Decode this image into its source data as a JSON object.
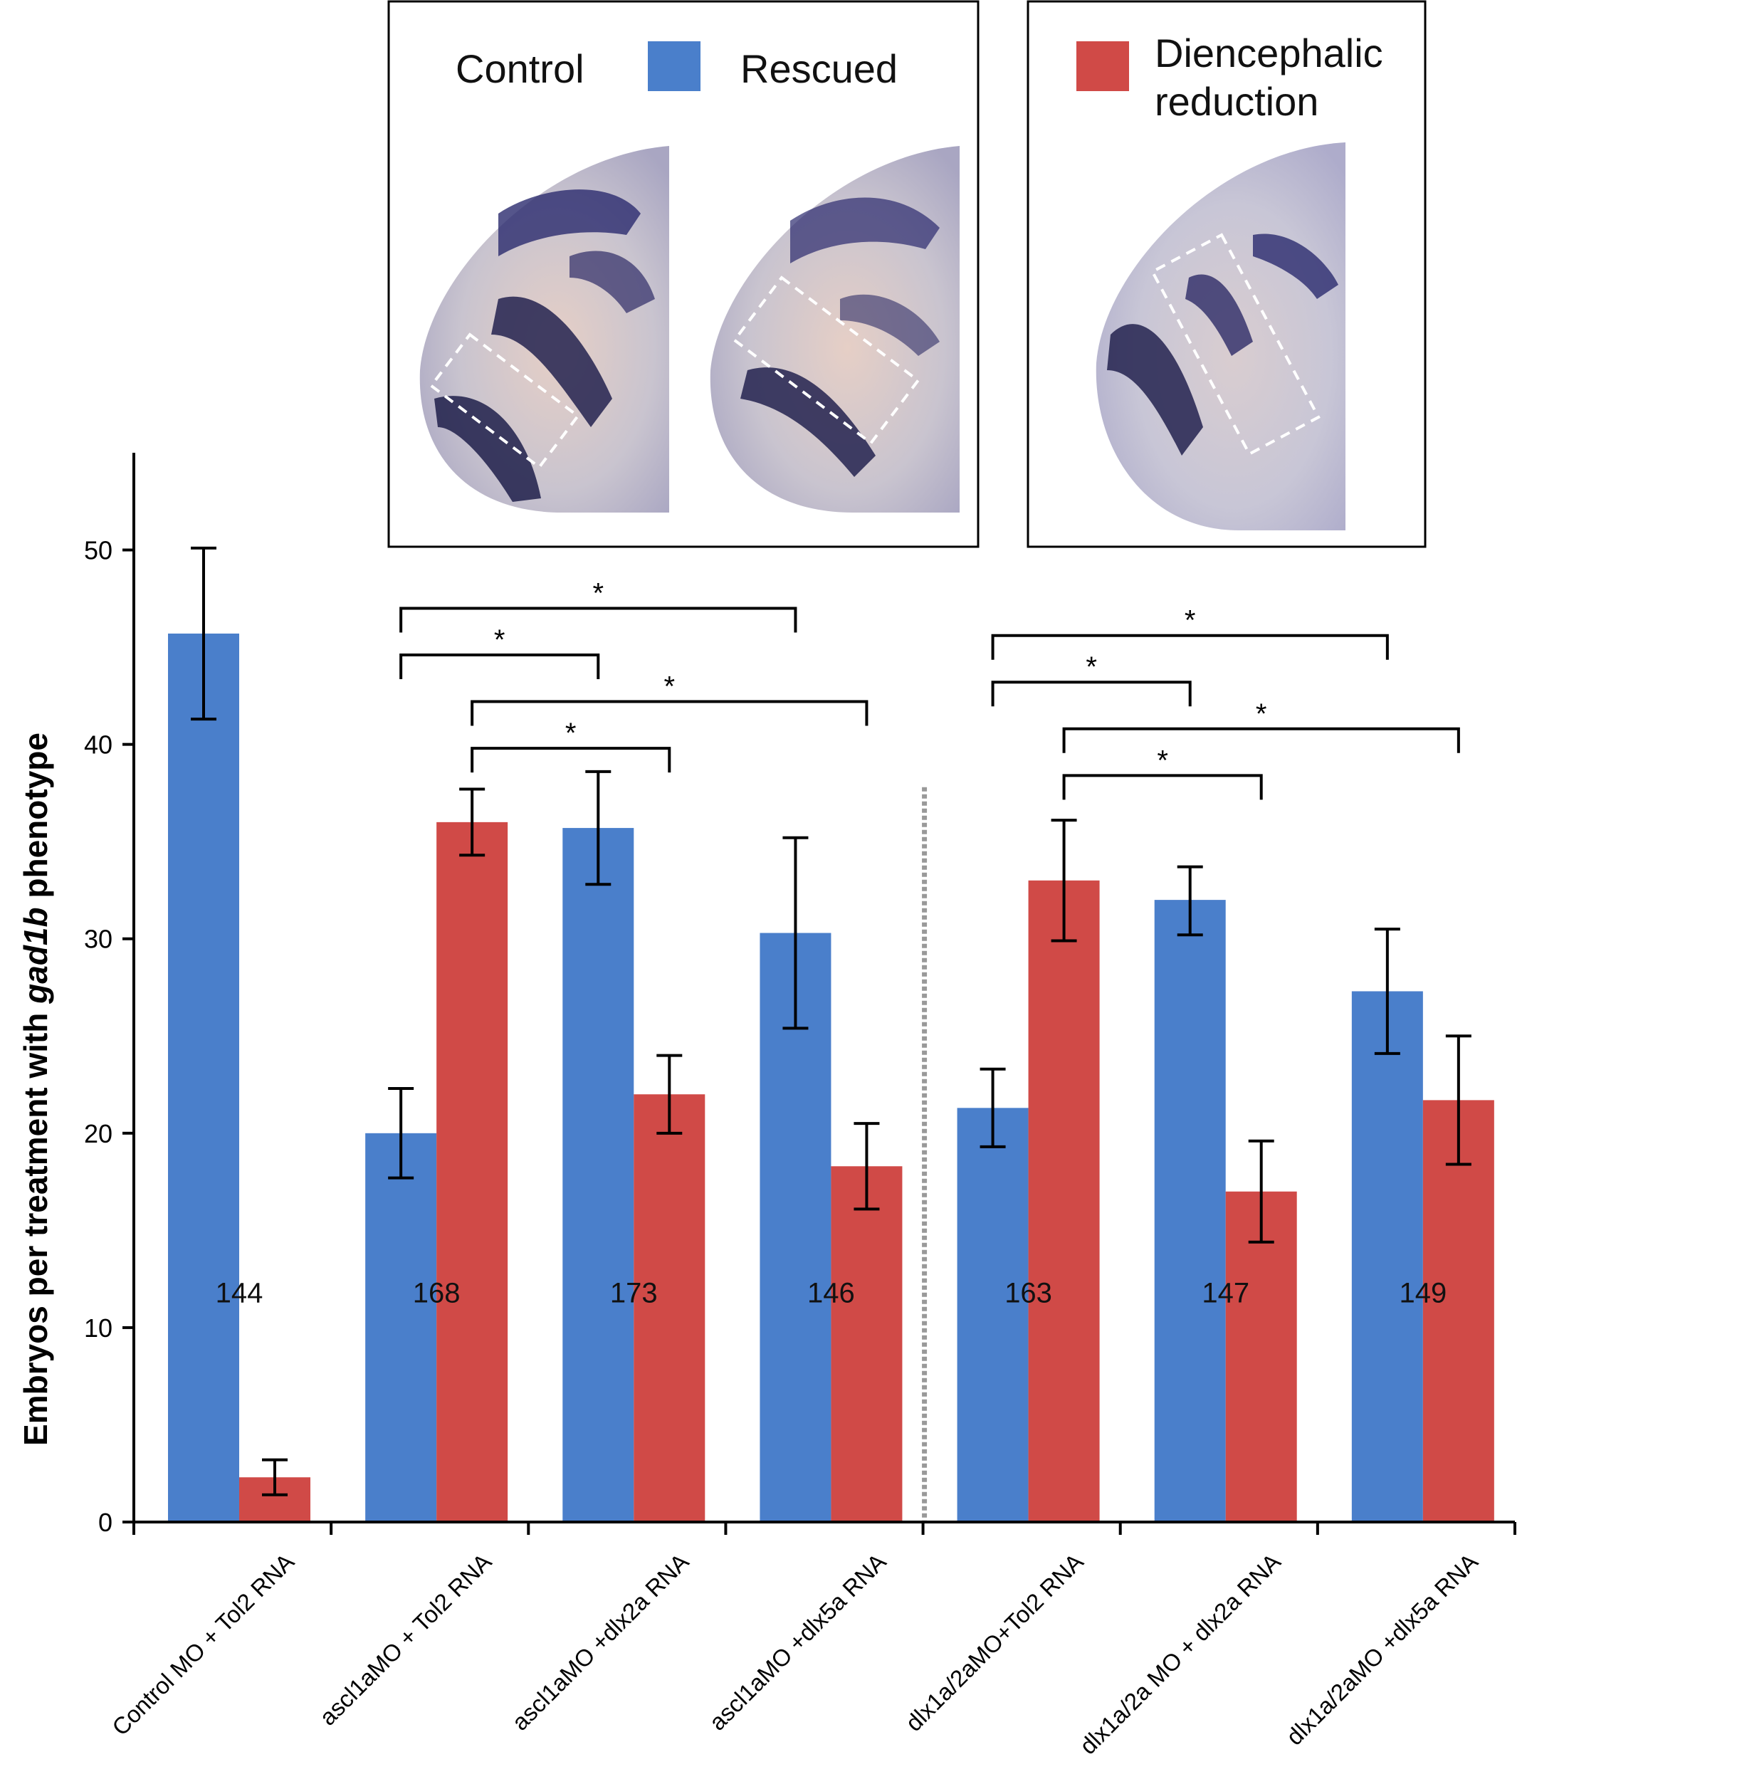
{
  "chart_data": {
    "type": "bar",
    "ylabel_prefix": "Embryos per treatment with ",
    "ylabel_gene": "gad1b",
    "ylabel_suffix": " phenotype",
    "ylim": [
      0,
      55
    ],
    "yticks": [
      0,
      10,
      20,
      30,
      40,
      50
    ],
    "categories": [
      "Control MO + Tol2 RNA",
      "ascl1aMO + Tol2 RNA",
      "ascl1aMO +dlx2a RNA",
      "ascl1aMO +dlx5a RNA",
      "dlx1a/2aMO+Tol2 RNA",
      "dlx1a/2a MO + dlx2a RNA",
      "dlx1a/2aMO +dlx5a RNA"
    ],
    "n_counts": [
      "144",
      "168",
      "173",
      "146",
      "163",
      "147",
      "149"
    ],
    "series": [
      {
        "name": "Rescued",
        "color": "#4a7fcb",
        "values": [
          45.7,
          20.0,
          35.7,
          30.3,
          21.3,
          32.0,
          27.3
        ],
        "err_low": [
          41.3,
          17.7,
          32.8,
          25.4,
          19.3,
          30.2,
          24.1
        ],
        "err_high": [
          50.1,
          22.3,
          38.6,
          35.2,
          23.3,
          33.7,
          30.5
        ]
      },
      {
        "name": "Diencephalic reduction",
        "color": "#d04a47",
        "values": [
          2.3,
          36.0,
          22.0,
          18.3,
          33.0,
          17.0,
          21.7
        ],
        "err_low": [
          1.4,
          34.3,
          20.0,
          16.1,
          29.9,
          14.4,
          18.4
        ],
        "err_high": [
          3.2,
          37.7,
          24.0,
          20.5,
          36.1,
          19.6,
          25.0
        ]
      }
    ],
    "divider_between": [
      3,
      4
    ],
    "significance": [
      {
        "from_group": 1,
        "from_series": 0,
        "to_group": 3,
        "to_series": 0,
        "level": 47.0,
        "label": "*"
      },
      {
        "from_group": 1,
        "from_series": 0,
        "to_group": 2,
        "to_series": 0,
        "level": 44.6,
        "label": "*"
      },
      {
        "from_group": 1,
        "from_series": 1,
        "to_group": 3,
        "to_series": 1,
        "level": 42.2,
        "label": "*"
      },
      {
        "from_group": 1,
        "from_series": 1,
        "to_group": 2,
        "to_series": 1,
        "level": 39.8,
        "label": "*"
      },
      {
        "from_group": 4,
        "from_series": 0,
        "to_group": 6,
        "to_series": 0,
        "level": 45.6,
        "label": "*"
      },
      {
        "from_group": 4,
        "from_series": 0,
        "to_group": 5,
        "to_series": 0,
        "level": 43.2,
        "label": "*"
      },
      {
        "from_group": 4,
        "from_series": 1,
        "to_group": 6,
        "to_series": 1,
        "level": 40.8,
        "label": "*"
      },
      {
        "from_group": 4,
        "from_series": 1,
        "to_group": 5,
        "to_series": 1,
        "level": 38.4,
        "label": "*"
      }
    ],
    "legend": {
      "control_label": "Control",
      "rescued_label": "Rescued",
      "reduction_label_line1": "Diencephalic",
      "reduction_label_line2": "reduction"
    },
    "inset_images": [
      "control-embryo-photo",
      "rescued-embryo-photo",
      "diencephalic-reduction-embryo-photo"
    ]
  }
}
